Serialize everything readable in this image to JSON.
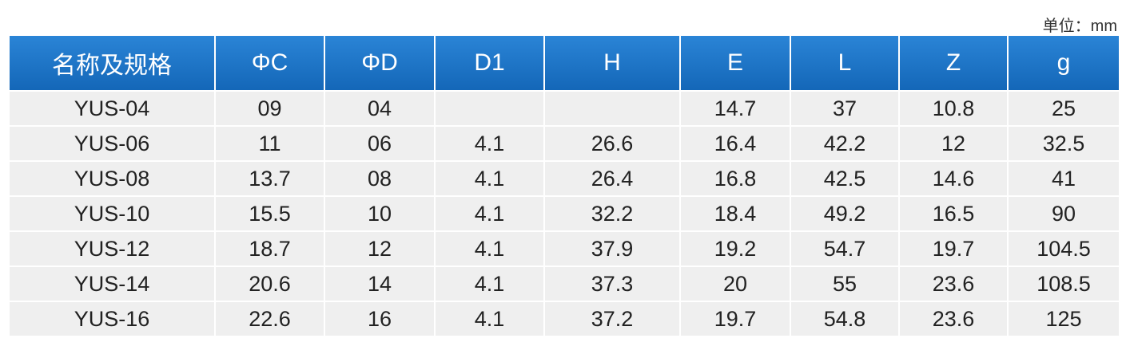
{
  "unit": "单位：mm",
  "table": {
    "header": [
      "名称及规格",
      "ΦC",
      "ΦD",
      "D1",
      "H",
      "E",
      "L",
      "Z",
      "g"
    ],
    "rows": [
      [
        "YUS-04",
        "09",
        "04",
        null,
        null,
        "14.7",
        "37",
        "10.8",
        "25"
      ],
      [
        "YUS-06",
        "11",
        "06",
        "4.1",
        "26.6",
        "16.4",
        "42.2",
        "12",
        "32.5"
      ],
      [
        "YUS-08",
        "13.7",
        "08",
        "4.1",
        "26.4",
        "16.8",
        "42.5",
        "14.6",
        "41"
      ],
      [
        "YUS-10",
        "15.5",
        "10",
        "4.1",
        "32.2",
        "18.4",
        "49.2",
        "16.5",
        "90"
      ],
      [
        "YUS-12",
        "18.7",
        "12",
        "4.1",
        "37.9",
        "19.2",
        "54.7",
        "19.7",
        "104.5"
      ],
      [
        "YUS-14",
        "20.6",
        "14",
        "4.1",
        "37.3",
        "20",
        "55",
        "23.6",
        "108.5"
      ],
      [
        "YUS-16",
        "22.6",
        "16",
        "4.1",
        "37.2",
        "19.7",
        "54.8",
        "23.6",
        "125"
      ]
    ]
  }
}
